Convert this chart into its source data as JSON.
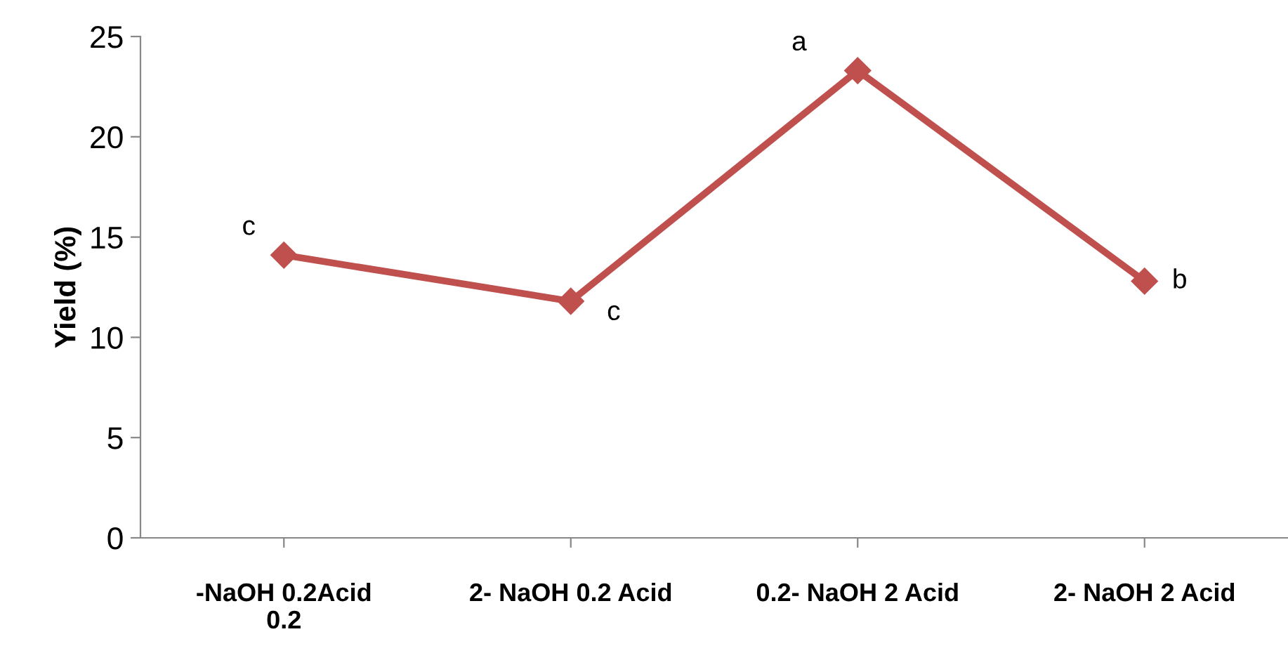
{
  "chart_data": {
    "type": "line",
    "ylabel": "Yield (%)",
    "categories": [
      "-NaOH 0.2Acid\n0.2",
      "2- NaOH 0.2 Acid",
      "0.2- NaOH 2 Acid",
      "2- NaOH 2 Acid"
    ],
    "series": [
      {
        "color": "#c0504d",
        "values": [
          14.1,
          11.8,
          23.3,
          12.8
        ]
      }
    ],
    "ylim": [
      0,
      25
    ],
    "yticks": [
      0,
      5,
      10,
      15,
      20,
      25
    ],
    "grid": false,
    "legend": false,
    "marker": "diamond",
    "line_style": "solid",
    "annotations": [
      {
        "text": "c",
        "x": "-NaOH 0.2Acid\n0.2",
        "y": 14.1
      },
      {
        "text": "c",
        "x": "2- NaOH 0.2 Acid",
        "y": 11.8
      },
      {
        "text": "a",
        "x": "0.2- NaOH 2 Acid",
        "y": 23.3
      },
      {
        "text": "b",
        "x": "2- NaOH 2 Acid",
        "y": 12.8
      }
    ]
  }
}
